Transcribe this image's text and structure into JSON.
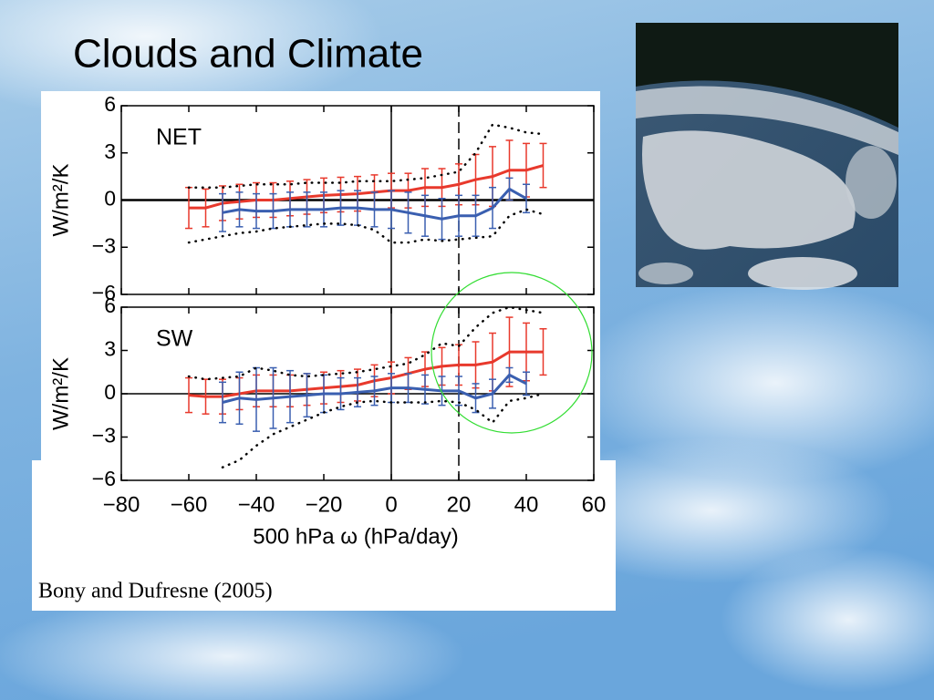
{
  "title": "Clouds and Climate",
  "caption": "Bony and Dufresne (2005)",
  "chart_data": [
    {
      "type": "line",
      "title": "NET",
      "ylabel": "W/m²/K",
      "x": [
        -60,
        -55,
        -50,
        -45,
        -40,
        -35,
        -30,
        -25,
        -20,
        -15,
        -10,
        -5,
        0,
        5,
        10,
        15,
        20,
        25,
        30,
        35,
        40,
        45
      ],
      "xlim": [
        -80,
        60
      ],
      "xticks": [
        -80,
        -60,
        -40,
        -20,
        0,
        20,
        40,
        60
      ],
      "ylim": [
        -6,
        6
      ],
      "yticks": [
        {
          "value": -6,
          "label": "−6"
        },
        {
          "value": -3,
          "label": "−3"
        },
        0,
        3,
        6
      ],
      "hline": 0,
      "vlines": [
        {
          "value": 0,
          "style": "solid"
        },
        {
          "value": 20,
          "style": "dashed"
        }
      ],
      "series": [
        {
          "color": "#e8392c",
          "style": "line",
          "values": [
            -0.5,
            -0.5,
            -0.2,
            -0.1,
            0,
            0,
            0.1,
            0.2,
            0.3,
            0.35,
            0.4,
            0.5,
            0.6,
            0.6,
            0.8,
            0.8,
            1.0,
            1.3,
            1.5,
            1.9,
            1.9,
            2.2
          ],
          "errors": [
            1.3,
            1.2,
            1.1,
            1.1,
            1.1,
            1.1,
            1.1,
            1.1,
            1.1,
            1.1,
            1.1,
            1.1,
            1.1,
            1.1,
            1.2,
            1.2,
            1.3,
            1.6,
            1.9,
            1.9,
            1.7,
            1.4
          ]
        },
        {
          "color": "#3a5fb0",
          "style": "line",
          "values": [
            null,
            null,
            -0.8,
            -0.6,
            -0.7,
            -0.7,
            -0.6,
            -0.6,
            -0.6,
            -0.5,
            -0.5,
            -0.6,
            -0.6,
            -0.8,
            -1.0,
            -1.2,
            -1.0,
            -1.0,
            -0.5,
            0.7,
            0.1,
            null
          ],
          "errors": [
            null,
            null,
            1.2,
            1.1,
            1.1,
            1.1,
            1.1,
            1.1,
            1.1,
            1.1,
            1.1,
            1.1,
            1.2,
            1.3,
            1.3,
            1.3,
            1.3,
            1.3,
            1.3,
            0.7,
            0.9,
            null
          ]
        },
        {
          "color": "#000000",
          "style": "dotted",
          "values": [
            0.8,
            0.8,
            0.8,
            0.9,
            1.0,
            1.0,
            1.0,
            1.1,
            1.1,
            1.1,
            1.2,
            1.2,
            1.2,
            1.3,
            1.4,
            1.6,
            1.8,
            3.0,
            4.8,
            4.6,
            4.3,
            4.2
          ]
        },
        {
          "color": "#000000",
          "style": "dotted",
          "values": [
            -2.7,
            -2.5,
            -2.3,
            -2.1,
            -2.0,
            -1.8,
            -1.7,
            -1.6,
            -1.5,
            -1.5,
            -1.6,
            -1.9,
            -2.7,
            -2.7,
            -2.5,
            -2.6,
            -2.5,
            -2.4,
            -2.3,
            -1.0,
            -0.6,
            -0.9
          ]
        }
      ]
    },
    {
      "type": "line",
      "title": "SW",
      "ylabel": "W/m²/K",
      "xlabel": "500 hPa ω (hPa/day)",
      "x": [
        -60,
        -55,
        -50,
        -45,
        -40,
        -35,
        -30,
        -25,
        -20,
        -15,
        -10,
        -5,
        0,
        5,
        10,
        15,
        20,
        25,
        30,
        35,
        40,
        45
      ],
      "xlim": [
        -80,
        60
      ],
      "xticks": [
        {
          "value": -80,
          "label": "−80"
        },
        {
          "value": -60,
          "label": "−60"
        },
        {
          "value": -40,
          "label": "−40"
        },
        {
          "value": -20,
          "label": "−20"
        },
        0,
        20,
        40,
        60
      ],
      "ylim": [
        -6,
        6
      ],
      "yticks": [
        {
          "value": -6,
          "label": "−6"
        },
        {
          "value": -3,
          "label": "−3"
        },
        0,
        3,
        6
      ],
      "hline": 0,
      "vlines": [
        {
          "value": 0,
          "style": "solid"
        },
        {
          "value": 20,
          "style": "dashed"
        }
      ],
      "series": [
        {
          "color": "#e8392c",
          "style": "line",
          "values": [
            -0.1,
            -0.2,
            -0.2,
            0,
            0.2,
            0.2,
            0.2,
            0.3,
            0.4,
            0.5,
            0.6,
            0.9,
            1.1,
            1.4,
            1.7,
            1.9,
            2.0,
            2.0,
            2.2,
            2.9,
            2.9,
            2.9
          ],
          "errors": [
            1.2,
            1.2,
            1.2,
            1.1,
            1.1,
            1.1,
            1.1,
            1.1,
            1.1,
            1.1,
            1.1,
            1.1,
            1.1,
            1.1,
            1.2,
            1.3,
            1.4,
            1.6,
            2.0,
            2.4,
            2.0,
            1.6
          ]
        },
        {
          "color": "#3a5fb0",
          "style": "line",
          "values": [
            null,
            null,
            -0.6,
            -0.3,
            -0.4,
            -0.3,
            -0.2,
            -0.1,
            0,
            0,
            0.1,
            0.2,
            0.4,
            0.4,
            0.3,
            0.2,
            0.2,
            -0.3,
            0,
            1.3,
            0.7,
            null
          ],
          "errors": [
            null,
            null,
            1.4,
            1.8,
            2.2,
            2.1,
            1.8,
            1.5,
            1.3,
            1.1,
            1.0,
            1.0,
            1.0,
            1.0,
            1.0,
            1.0,
            1.0,
            1.0,
            1.0,
            0.5,
            0.8,
            null
          ]
        },
        {
          "color": "#000000",
          "style": "dotted",
          "values": [
            1.2,
            1.0,
            1.1,
            1.2,
            1.8,
            1.6,
            1.3,
            1.2,
            1.3,
            1.4,
            1.5,
            1.7,
            1.9,
            2.1,
            2.7,
            3.5,
            3.3,
            4.6,
            5.6,
            6.0,
            5.8,
            5.6
          ]
        },
        {
          "color": "#000000",
          "style": "dotted",
          "values": [
            null,
            null,
            -5.1,
            -4.6,
            -3.6,
            -2.8,
            -2.3,
            -1.8,
            -1.3,
            -0.9,
            -0.6,
            -0.5,
            -0.6,
            -0.6,
            -0.6,
            -0.5,
            -0.6,
            -1.1,
            -2.0,
            -0.5,
            -0.3,
            0
          ]
        }
      ]
    }
  ]
}
